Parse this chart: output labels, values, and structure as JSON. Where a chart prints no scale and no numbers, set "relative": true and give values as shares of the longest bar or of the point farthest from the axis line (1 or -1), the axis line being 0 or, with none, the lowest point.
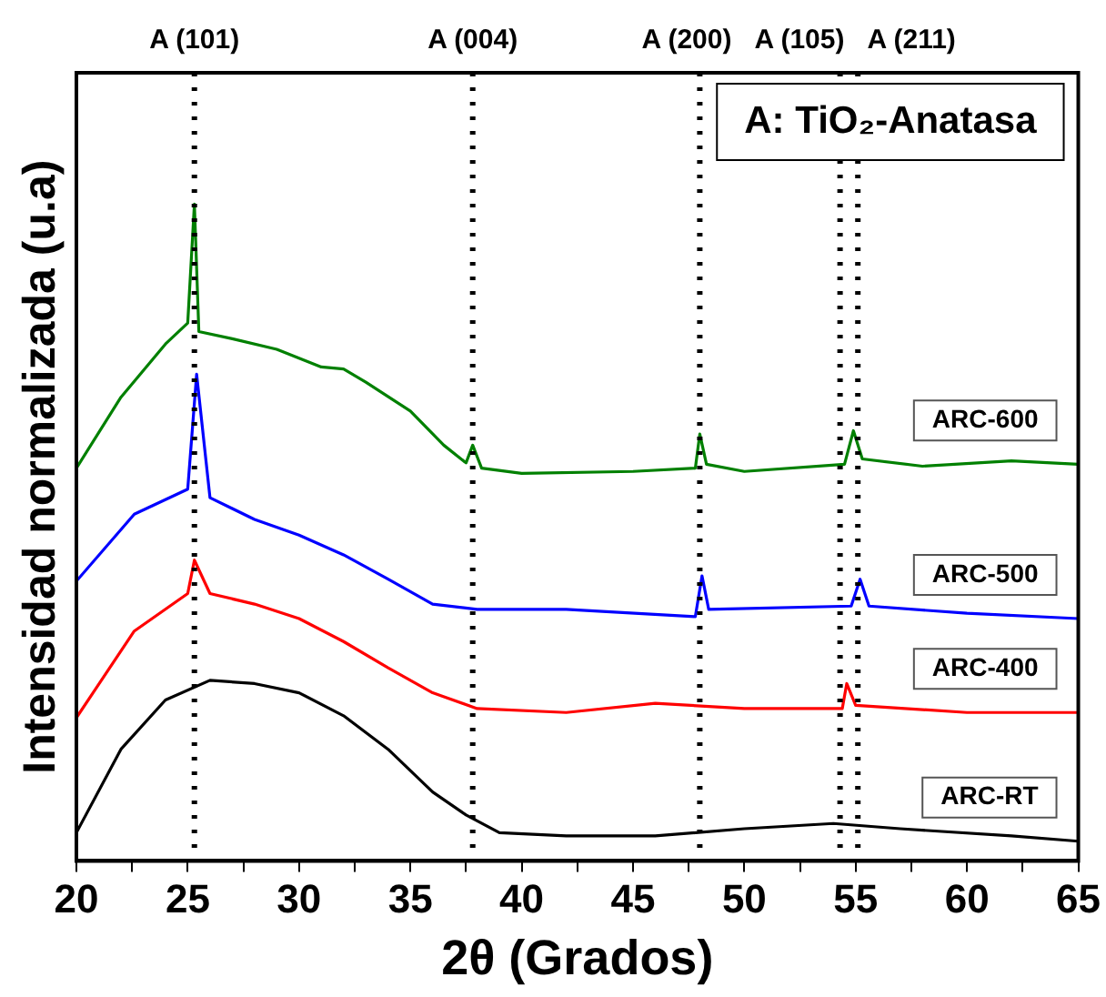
{
  "chart_data": {
    "type": "line",
    "relative": true,
    "xlabel": "2θ (Grados)",
    "ylabel": "Intensidad normalizada (u.a)",
    "annotations": [
      "A: TiO₂-Anatasa"
    ],
    "xlim": [
      20,
      65
    ],
    "xticks": [
      20,
      {
        "value": 22.5,
        "label": null
      },
      25,
      {
        "value": 27.5,
        "label": null
      },
      30,
      {
        "value": 32.5,
        "label": null
      },
      35,
      {
        "value": 37.5,
        "label": null
      },
      40,
      {
        "value": 42.5,
        "label": null
      },
      45,
      {
        "value": 47.5,
        "label": null
      },
      50,
      {
        "value": 52.5,
        "label": null
      },
      55,
      {
        "value": 57.5,
        "label": null
      },
      60,
      {
        "value": 62.5,
        "label": null
      },
      65
    ],
    "grid": false,
    "legend": false,
    "marker": "none",
    "line_style": "solid",
    "ref_lines": [
      {
        "axis": "x",
        "value": 25.3,
        "label": "A (101)",
        "color": "#000000",
        "line_style": "dotted"
      },
      {
        "axis": "x",
        "value": 37.8,
        "label": "A (004)",
        "color": "#000000",
        "line_style": "dotted"
      },
      {
        "axis": "x",
        "value": 48.0,
        "label": "A (200)",
        "color": "#000000",
        "line_style": "dotted"
      },
      {
        "axis": "x",
        "value": 54.3,
        "label": "A (105)",
        "color": "#000000",
        "line_style": "dotted"
      },
      {
        "axis": "x",
        "value": 55.1,
        "label": "A (211)",
        "color": "#000000",
        "line_style": "dotted"
      }
    ],
    "series": [
      {
        "name": "ARC-600",
        "color": "#008000",
        "x": [
          20,
          22,
          24,
          25,
          25.3,
          25.5,
          27,
          29,
          31,
          32,
          33,
          35,
          36.5,
          37.5,
          37.8,
          38.2,
          40,
          45,
          47.8,
          48.0,
          48.3,
          50,
          54.5,
          54.9,
          55.3,
          58,
          62,
          65
        ],
        "values": [
          0.598,
          0.706,
          0.787,
          0.819,
          1.0,
          0.806,
          0.795,
          0.779,
          0.752,
          0.749,
          0.729,
          0.685,
          0.633,
          0.606,
          0.633,
          0.598,
          0.59,
          0.593,
          0.598,
          0.65,
          0.604,
          0.593,
          0.604,
          0.655,
          0.612,
          0.601,
          0.609,
          0.604
        ]
      },
      {
        "name": "ARC-500",
        "color": "#0000ff",
        "x": [
          20,
          22.6,
          25,
          25.4,
          26,
          28,
          30,
          32,
          34,
          36,
          38,
          42,
          47.8,
          48.1,
          48.4,
          54.8,
          55.2,
          55.6,
          60,
          65
        ],
        "values": [
          0.426,
          0.528,
          0.566,
          0.741,
          0.553,
          0.52,
          0.496,
          0.466,
          0.429,
          0.391,
          0.383,
          0.383,
          0.372,
          0.434,
          0.383,
          0.388,
          0.429,
          0.388,
          0.377,
          0.369
        ]
      },
      {
        "name": "ARC-400",
        "color": "#ff0000",
        "x": [
          20,
          22.6,
          25,
          25.3,
          26,
          28,
          30,
          32,
          34,
          36,
          38,
          42,
          46,
          50,
          54.4,
          54.6,
          55,
          60,
          65
        ],
        "values": [
          0.218,
          0.35,
          0.407,
          0.458,
          0.407,
          0.391,
          0.369,
          0.334,
          0.294,
          0.256,
          0.232,
          0.226,
          0.24,
          0.232,
          0.232,
          0.27,
          0.237,
          0.226,
          0.226
        ]
      },
      {
        "name": "ARC-RT",
        "color": "#000000",
        "x": [
          20,
          22,
          24,
          26,
          28,
          30,
          32,
          34,
          36,
          37.5,
          39,
          42,
          46,
          50,
          54,
          57,
          62,
          65
        ],
        "values": [
          0.043,
          0.17,
          0.245,
          0.275,
          0.27,
          0.256,
          0.221,
          0.17,
          0.105,
          0.07,
          0.043,
          0.038,
          0.038,
          0.049,
          0.057,
          0.049,
          0.038,
          0.03
        ]
      }
    ]
  }
}
